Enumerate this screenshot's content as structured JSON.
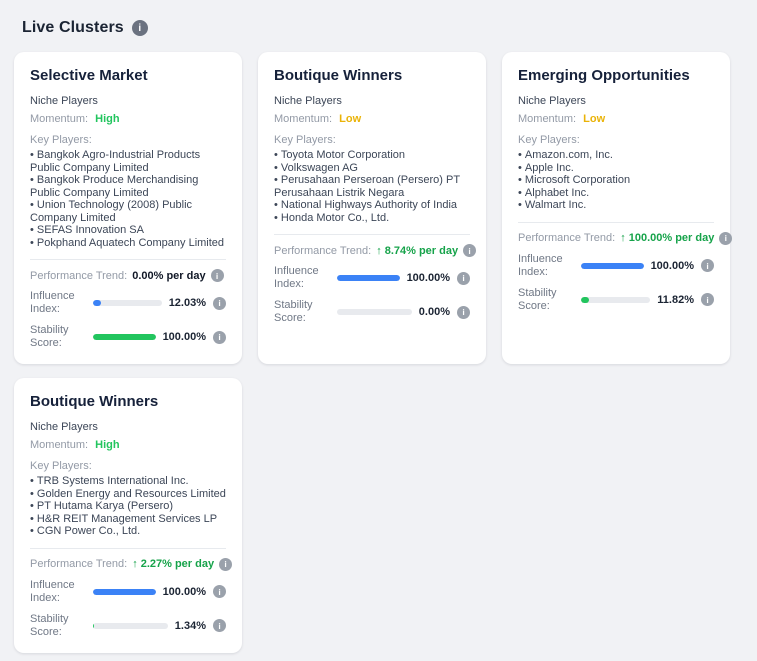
{
  "page": {
    "title": "Live Clusters"
  },
  "icons": {
    "info": "i"
  },
  "cards": [
    {
      "title": "Selective Market",
      "subtitle": "Niche Players",
      "momentum_label": "Momentum:",
      "momentum": "High",
      "momentum_color": "#22c55e",
      "key_players_label": "Key Players:",
      "players": [
        "Bangkok Agro-Industrial Products Public Company Limited",
        "Bangkok Produce Merchandising Public Company Limited",
        "Union Technology (2008) Public Company Limited",
        "SEFAS Innovation SA",
        "Pokphand Aquatech Company Limited"
      ],
      "trend_label": "Performance Trend:",
      "trend_arrow": "",
      "trend_value": "0.00% per day",
      "trend_color": "#111827",
      "metrics": [
        {
          "label_line1": "Influence",
          "label_line2": "Index:",
          "value": "12.03%",
          "percent": 12.03,
          "bar_color": "#3b82f6"
        },
        {
          "label_line1": "Stability",
          "label_line2": "Score:",
          "value": "100.00%",
          "percent": 100,
          "bar_color": "#22c55e"
        }
      ]
    },
    {
      "title": "Boutique Winners",
      "subtitle": "Niche Players",
      "momentum_label": "Momentum:",
      "momentum": "Low",
      "momentum_color": "#eab308",
      "key_players_label": "Key Players:",
      "players": [
        "Toyota Motor Corporation",
        "Volkswagen AG",
        "Perusahaan Perseroan (Persero) PT Perusahaan Listrik Negara",
        "National Highways Authority of India",
        "Honda Motor Co., Ltd."
      ],
      "trend_label": "Performance Trend:",
      "trend_arrow": "↑",
      "trend_value": "8.74% per day",
      "trend_color": "#16a34a",
      "metrics": [
        {
          "label_line1": "Influence",
          "label_line2": "Index:",
          "value": "100.00%",
          "percent": 100,
          "bar_color": "#3b82f6"
        },
        {
          "label_line1": "Stability",
          "label_line2": "Score:",
          "value": "0.00%",
          "percent": 0,
          "bar_color": "#22c55e"
        }
      ]
    },
    {
      "title": "Emerging Opportunities",
      "subtitle": "Niche Players",
      "momentum_label": "Momentum:",
      "momentum": "Low",
      "momentum_color": "#eab308",
      "key_players_label": "Key Players:",
      "players": [
        "Amazon.com, Inc.",
        "Apple Inc.",
        "Microsoft Corporation",
        "Alphabet Inc.",
        "Walmart Inc."
      ],
      "trend_label": "Performance Trend:",
      "trend_arrow": "↑",
      "trend_value": "100.00% per day",
      "trend_color": "#16a34a",
      "metrics": [
        {
          "label_line1": "Influence",
          "label_line2": "Index:",
          "value": "100.00%",
          "percent": 100,
          "bar_color": "#3b82f6"
        },
        {
          "label_line1": "Stability",
          "label_line2": "Score:",
          "value": "11.82%",
          "percent": 11.82,
          "bar_color": "#22c55e"
        }
      ]
    },
    {
      "title": "Boutique Winners",
      "subtitle": "Niche Players",
      "momentum_label": "Momentum:",
      "momentum": "High",
      "momentum_color": "#22c55e",
      "key_players_label": "Key Players:",
      "players": [
        "TRB Systems International Inc.",
        "Golden Energy and Resources Limited",
        "PT Hutama Karya (Persero)",
        "H&R REIT Management Services LP",
        "CGN Power Co., Ltd."
      ],
      "trend_label": "Performance Trend:",
      "trend_arrow": "↑",
      "trend_value": "2.27% per day",
      "trend_color": "#16a34a",
      "metrics": [
        {
          "label_line1": "Influence",
          "label_line2": "Index:",
          "value": "100.00%",
          "percent": 100,
          "bar_color": "#3b82f6"
        },
        {
          "label_line1": "Stability",
          "label_line2": "Score:",
          "value": "1.34%",
          "percent": 1.34,
          "bar_color": "#22c55e"
        }
      ]
    }
  ]
}
